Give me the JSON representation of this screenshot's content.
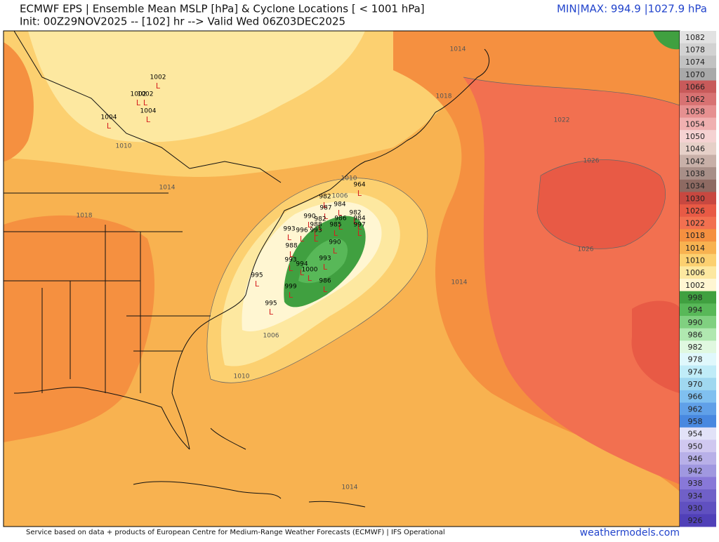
{
  "header": {
    "title": "ECMWF EPS | Ensemble Mean MSLP [hPa] & Cyclone Locations [ < 1001 hPa]",
    "subtitle": "Init: 00Z29NOV2025 -- [102] hr --> Valid Wed 06Z03DEC2025",
    "minmax": "MIN|MAX: 994.9 |1027.9 hPa"
  },
  "colorbar": [
    {
      "label": "1082",
      "color": "#e2e2e2"
    },
    {
      "label": "1078",
      "color": "#d2d2d2"
    },
    {
      "label": "1074",
      "color": "#c2c2c2"
    },
    {
      "label": "1070",
      "color": "#a9a9a9"
    },
    {
      "label": "1066",
      "color": "#c85a5a"
    },
    {
      "label": "1062",
      "color": "#d87272"
    },
    {
      "label": "1058",
      "color": "#e69090"
    },
    {
      "label": "1054",
      "color": "#f0b0b0"
    },
    {
      "label": "1050",
      "color": "#f5d2d2"
    },
    {
      "label": "1046",
      "color": "#e6d0c8"
    },
    {
      "label": "1042",
      "color": "#c8b0a8"
    },
    {
      "label": "1038",
      "color": "#a88f88"
    },
    {
      "label": "1034",
      "color": "#8e6a62"
    },
    {
      "label": "1030",
      "color": "#c84840"
    },
    {
      "label": "1026",
      "color": "#e85a45"
    },
    {
      "label": "1022",
      "color": "#f27050"
    },
    {
      "label": "1018",
      "color": "#f59040"
    },
    {
      "label": "1014",
      "color": "#f8b250"
    },
    {
      "label": "1010",
      "color": "#fcd070"
    },
    {
      "label": "1006",
      "color": "#fde8a0"
    },
    {
      "label": "1002",
      "color": "#fff6d2"
    },
    {
      "label": "998",
      "color": "#40a040"
    },
    {
      "label": "994",
      "color": "#58b858"
    },
    {
      "label": "990",
      "color": "#80d080"
    },
    {
      "label": "986",
      "color": "#b0e8b0"
    },
    {
      "label": "982",
      "color": "#e0f8e0"
    },
    {
      "label": "978",
      "color": "#e0f8fc"
    },
    {
      "label": "974",
      "color": "#c0ecf8"
    },
    {
      "label": "970",
      "color": "#a0d8f0"
    },
    {
      "label": "966",
      "color": "#80c0f0"
    },
    {
      "label": "962",
      "color": "#60a0e8"
    },
    {
      "label": "958",
      "color": "#4888e0"
    },
    {
      "label": "954",
      "color": "#e2e2f8"
    },
    {
      "label": "950",
      "color": "#d0c8f0"
    },
    {
      "label": "946",
      "color": "#b8b0e8"
    },
    {
      "label": "942",
      "color": "#a098e0"
    },
    {
      "label": "938",
      "color": "#8878d8"
    },
    {
      "label": "934",
      "color": "#7060c8"
    },
    {
      "label": "930",
      "color": "#6050c0"
    },
    {
      "label": "926",
      "color": "#5040b8"
    }
  ],
  "contour_labels": [
    "1014",
    "1018",
    "1022",
    "1026",
    "1026",
    "1010",
    "1014",
    "1018",
    "1006",
    "1010",
    "1014",
    "1010",
    "1006",
    "1014"
  ],
  "cyclone_symbol": "L",
  "cyclone_labels": [
    "1002",
    "1002",
    "1002",
    "1004",
    "1004",
    "995",
    "995",
    "999",
    "1000",
    "986",
    "982",
    "987",
    "984",
    "986",
    "982",
    "984",
    "997",
    "964",
    "985",
    "990",
    "993",
    "990",
    "982",
    "988",
    "993",
    "996",
    "993",
    "993",
    "994",
    "988"
  ],
  "footer": {
    "credit": "Service based on data + products of European Centre for Medium-Range Weather Forecasts (ECMWF) | IFS Operational",
    "site": "weathermodels.com"
  }
}
